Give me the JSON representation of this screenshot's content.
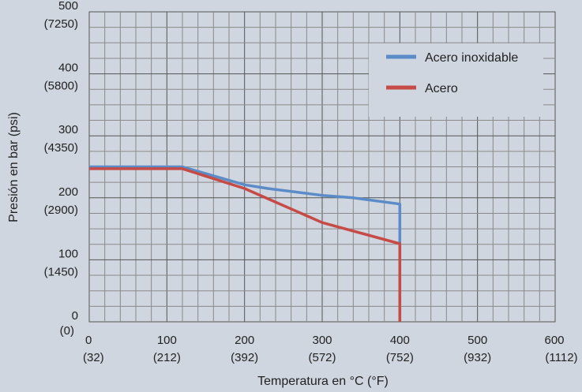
{
  "chart_data": {
    "type": "line",
    "title": "",
    "xlabel": "Temperatura en °C (°F)",
    "ylabel": "Presión en bar (psi)",
    "xlim": [
      0,
      600
    ],
    "ylim": [
      0,
      500
    ],
    "x_ticks": [
      {
        "value": 0,
        "c": "0",
        "f": "(32)"
      },
      {
        "value": 100,
        "c": "100",
        "f": "(212)"
      },
      {
        "value": 200,
        "c": "200",
        "f": "(392)"
      },
      {
        "value": 300,
        "c": "300",
        "f": "(572)"
      },
      {
        "value": 400,
        "c": "400",
        "f": "(752)"
      },
      {
        "value": 500,
        "c": "500",
        "f": "(932)"
      },
      {
        "value": 600,
        "c": "600",
        "f": "(1112)"
      }
    ],
    "y_ticks": [
      {
        "value": 0,
        "bar": "0",
        "psi": "(0)"
      },
      {
        "value": 100,
        "bar": "100",
        "psi": "(1450)"
      },
      {
        "value": 200,
        "bar": "200",
        "psi": "(2900)"
      },
      {
        "value": 300,
        "bar": "300",
        "psi": "(4350)"
      },
      {
        "value": 400,
        "bar": "400",
        "psi": "(5800)"
      },
      {
        "value": 500,
        "bar": "500",
        "psi": "(7250)"
      }
    ],
    "grid": true,
    "legend_position": "top-right",
    "series": [
      {
        "name": "Acero inoxidable",
        "color": "#5b8cc8",
        "points": [
          [
            0,
            250
          ],
          [
            120,
            250
          ],
          [
            200,
            221
          ],
          [
            230,
            215
          ],
          [
            300,
            204
          ],
          [
            340,
            200
          ],
          [
            400,
            190
          ],
          [
            400,
            0
          ]
        ]
      },
      {
        "name": "Acero",
        "color": "#c64a46",
        "points": [
          [
            0,
            247
          ],
          [
            120,
            247
          ],
          [
            200,
            215
          ],
          [
            300,
            160
          ],
          [
            400,
            126
          ],
          [
            400,
            0
          ]
        ]
      }
    ]
  }
}
